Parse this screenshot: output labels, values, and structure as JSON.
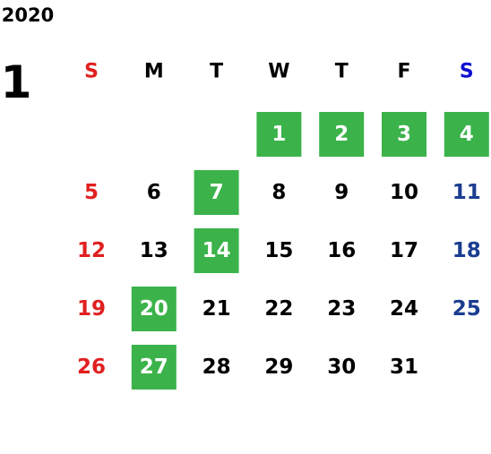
{
  "calendar": {
    "year": "2020",
    "month": "1",
    "weekdays": [
      "S",
      "M",
      "T",
      "W",
      "T",
      "F",
      "S"
    ],
    "weekday_colors": [
      "#e02020",
      "#000000",
      "#000000",
      "#000000",
      "#000000",
      "#000000",
      "#1010d0"
    ],
    "day_colors": [
      "#e02020",
      "#000000",
      "#000000",
      "#000000",
      "#000000",
      "#000000",
      "#1a3d8f"
    ],
    "highlight_color": "#3bb34a",
    "highlight_text_color": "#ffffff",
    "weeks": [
      [
        null,
        null,
        null,
        {
          "text": "1",
          "highlight": true
        },
        {
          "text": "2",
          "highlight": true
        },
        {
          "text": "3",
          "highlight": true
        },
        {
          "text": "4",
          "highlight": true
        }
      ],
      [
        {
          "text": "5",
          "highlight": false
        },
        {
          "text": "6",
          "highlight": false
        },
        {
          "text": "7",
          "highlight": true
        },
        {
          "text": "8",
          "highlight": false
        },
        {
          "text": "9",
          "highlight": false
        },
        {
          "text": "10",
          "highlight": false
        },
        {
          "text": "11",
          "highlight": false
        }
      ],
      [
        {
          "text": "12",
          "highlight": false
        },
        {
          "text": "13",
          "highlight": false
        },
        {
          "text": "14",
          "highlight": true
        },
        {
          "text": "15",
          "highlight": false
        },
        {
          "text": "16",
          "highlight": false
        },
        {
          "text": "17",
          "highlight": false
        },
        {
          "text": "18",
          "highlight": false
        }
      ],
      [
        {
          "text": "19",
          "highlight": false
        },
        {
          "text": "20",
          "highlight": true
        },
        {
          "text": "21",
          "highlight": false
        },
        {
          "text": "22",
          "highlight": false
        },
        {
          "text": "23",
          "highlight": false
        },
        {
          "text": "24",
          "highlight": false
        },
        {
          "text": "25",
          "highlight": false
        }
      ],
      [
        {
          "text": "26",
          "highlight": false
        },
        {
          "text": "27",
          "highlight": true
        },
        {
          "text": "28",
          "highlight": false
        },
        {
          "text": "29",
          "highlight": false
        },
        {
          "text": "30",
          "highlight": false
        },
        {
          "text": "31",
          "highlight": false
        },
        null
      ]
    ]
  }
}
